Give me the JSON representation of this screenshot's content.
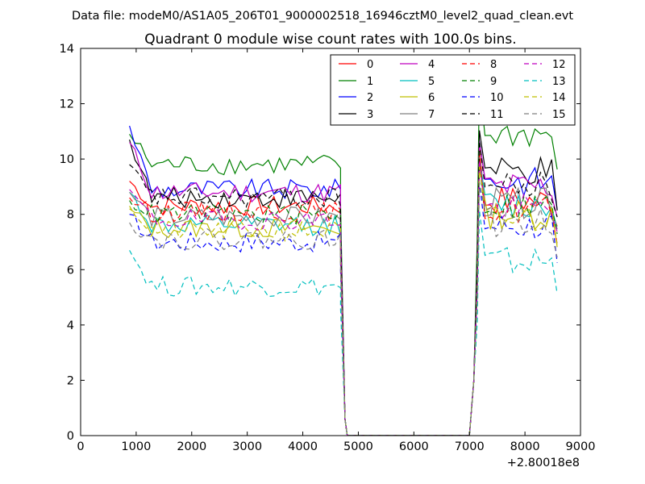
{
  "chart_data": {
    "type": "line",
    "suptitle": "Data file: modeM0/AS1A05_206T01_9000002518_16946cztM0_level2_quad_clean.evt",
    "title": "Quadrant 0 module wise count rates with 100.0s bins.",
    "xlabel": "",
    "ylabel": "",
    "x_offset_label": "+2.80018e8",
    "xlim": [
      0,
      9000
    ],
    "ylim": [
      0,
      14
    ],
    "xticks": [
      0,
      1000,
      2000,
      3000,
      4000,
      5000,
      6000,
      7000,
      8000,
      9000
    ],
    "yticks": [
      0,
      2,
      4,
      6,
      8,
      10,
      12,
      14
    ],
    "legend_position": "top-right",
    "legend_columns": 4,
    "segments": {
      "first": {
        "x_start": 880,
        "step": 100,
        "n": 39,
        "drop_x": [
          4680,
          4760,
          4800
        ]
      },
      "second": {
        "rise_x": [
          7000,
          7080,
          7140
        ],
        "x_start": 7180,
        "step": 100,
        "n": 15
      }
    },
    "series": [
      {
        "name": "0",
        "color": "#ff0000",
        "dashed": false,
        "level_a": 8.3,
        "level_b": 8.5,
        "start": 9.2
      },
      {
        "name": "1",
        "color": "#008000",
        "dashed": false,
        "level_a": 9.8,
        "level_b": 10.9,
        "start": 10.9
      },
      {
        "name": "2",
        "color": "#0000ff",
        "dashed": false,
        "level_a": 8.9,
        "level_b": 9.2,
        "start": 11.2
      },
      {
        "name": "3",
        "color": "#000000",
        "dashed": false,
        "level_a": 8.6,
        "level_b": 9.5,
        "start": 10.7
      },
      {
        "name": "4",
        "color": "#bf00bf",
        "dashed": false,
        "level_a": 8.8,
        "level_b": 9.0,
        "start": 10.6
      },
      {
        "name": "5",
        "color": "#00bfbf",
        "dashed": false,
        "level_a": 7.6,
        "level_b": 8.3,
        "start": 8.8
      },
      {
        "name": "6",
        "color": "#bfbf00",
        "dashed": false,
        "level_a": 7.5,
        "level_b": 8.0,
        "start": 8.2
      },
      {
        "name": "7",
        "color": "#808080",
        "dashed": false,
        "level_a": 7.9,
        "level_b": 8.4,
        "start": 8.8
      },
      {
        "name": "8",
        "color": "#ff0000",
        "dashed": true,
        "level_a": 8.1,
        "level_b": 8.2,
        "start": 8.6
      },
      {
        "name": "9",
        "color": "#008000",
        "dashed": true,
        "level_a": 8.0,
        "level_b": 8.3,
        "start": 8.5
      },
      {
        "name": "10",
        "color": "#0000ff",
        "dashed": true,
        "level_a": 7.0,
        "level_b": 7.6,
        "start": 8.0
      },
      {
        "name": "11",
        "color": "#000000",
        "dashed": true,
        "level_a": 8.6,
        "level_b": 9.0,
        "start": 9.8
      },
      {
        "name": "12",
        "color": "#bf00bf",
        "dashed": true,
        "level_a": 7.8,
        "level_b": 8.2,
        "start": 8.9
      },
      {
        "name": "13",
        "color": "#00bfbf",
        "dashed": true,
        "level_a": 5.4,
        "level_b": 6.3,
        "start": 6.7
      },
      {
        "name": "14",
        "color": "#bfbf00",
        "dashed": true,
        "level_a": 7.4,
        "level_b": 7.8,
        "start": 8.3
      },
      {
        "name": "15",
        "color": "#808080",
        "dashed": true,
        "level_a": 7.1,
        "level_b": 7.7,
        "start": 7.7
      }
    ]
  }
}
